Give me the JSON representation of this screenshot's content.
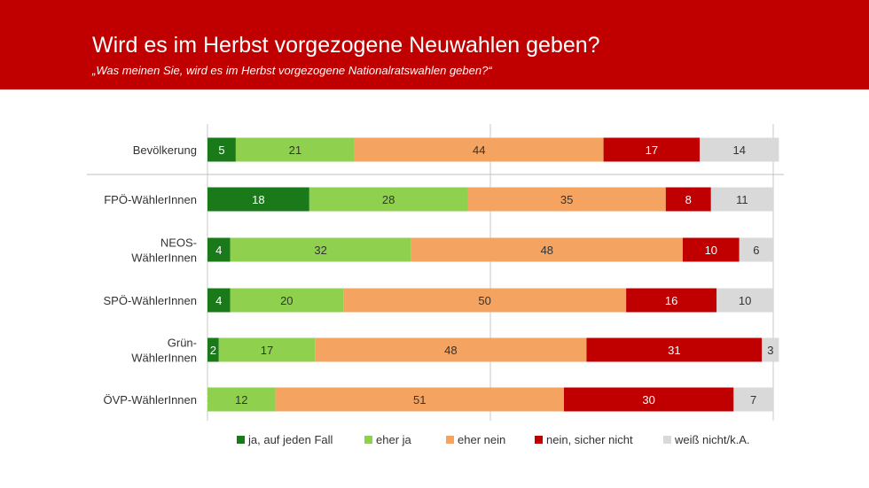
{
  "header": {
    "title": "Wird es im Herbst vorgezogene Neuwahlen geben?",
    "subtitle": "„Was meinen Sie, wird es im Herbst vorgezogene Nationalratswahlen  geben?“"
  },
  "colors": {
    "header_bg": "#c00000",
    "ja_auf_jeden_fall": "#1a7a1a",
    "eher_ja": "#8fd14f",
    "eher_nein": "#f4a460",
    "nein_sicher_nicht": "#c00000",
    "weiss_nicht": "#d9d9d9"
  },
  "chart_data": {
    "type": "bar",
    "orientation": "horizontal",
    "stacked": true,
    "categories": [
      [
        "Bevölkerung"
      ],
      [
        "FPÖ-WählerInnen"
      ],
      [
        "NEOS-",
        "WählerInnen"
      ],
      [
        "SPÖ-WählerInnen"
      ],
      [
        "Grün-",
        "WählerInnen"
      ],
      [
        "ÖVP-WählerInnen"
      ]
    ],
    "series": [
      {
        "name": "ja, auf jeden Fall",
        "color": "#1a7a1a",
        "label_color": "#ffffff",
        "values": [
          5,
          18,
          4,
          4,
          2,
          0
        ]
      },
      {
        "name": "eher ja",
        "color": "#8fd14f",
        "label_color": "#333333",
        "values": [
          21,
          28,
          32,
          20,
          17,
          12
        ]
      },
      {
        "name": "eher nein",
        "color": "#f4a460",
        "label_color": "#333333",
        "values": [
          44,
          35,
          48,
          50,
          48,
          51
        ]
      },
      {
        "name": "nein, sicher nicht",
        "color": "#c00000",
        "label_color": "#ffffff",
        "values": [
          17,
          8,
          10,
          16,
          31,
          30
        ]
      },
      {
        "name": "weiß nicht/k.A.",
        "color": "#d9d9d9",
        "label_color": "#333333",
        "values": [
          14,
          11,
          6,
          10,
          3,
          7
        ]
      }
    ],
    "xlim": [
      0,
      100
    ],
    "grid": true,
    "legend_position": "bottom"
  }
}
